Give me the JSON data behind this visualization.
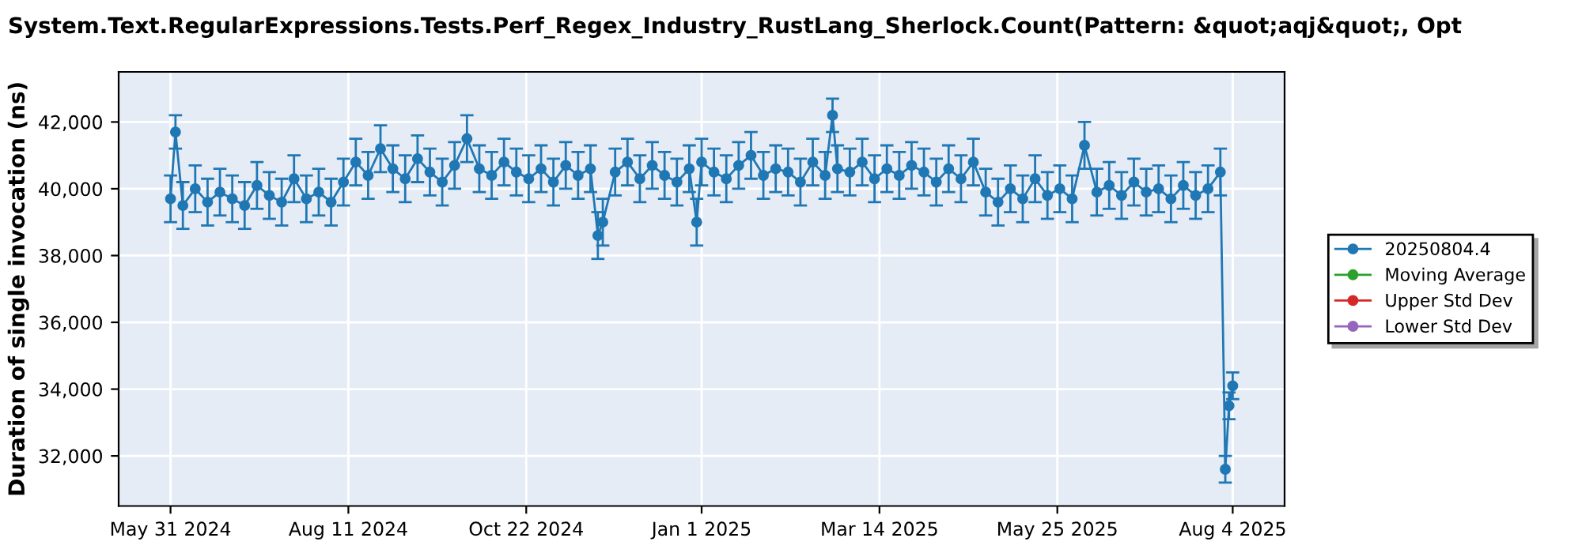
{
  "chart_data": {
    "type": "line",
    "title": "System.Text.RegularExpressions.Tests.Perf_Regex_Industry_RustLang_Sherlock.Count(Pattern: &quot;aqj&quot;, Opt",
    "ylabel": "Duration of single invocation (ns)",
    "x": [
      "2024-05-31",
      "2024-06-02",
      "2024-06-05",
      "2024-06-10",
      "2024-06-15",
      "2024-06-20",
      "2024-06-25",
      "2024-06-30",
      "2024-07-05",
      "2024-07-10",
      "2024-07-15",
      "2024-07-20",
      "2024-07-25",
      "2024-07-30",
      "2024-08-04",
      "2024-08-09",
      "2024-08-14",
      "2024-08-19",
      "2024-08-24",
      "2024-08-29",
      "2024-09-03",
      "2024-09-08",
      "2024-09-13",
      "2024-09-18",
      "2024-09-23",
      "2024-09-28",
      "2024-10-03",
      "2024-10-08",
      "2024-10-13",
      "2024-10-18",
      "2024-10-23",
      "2024-10-28",
      "2024-11-02",
      "2024-11-07",
      "2024-11-12",
      "2024-11-17",
      "2024-11-20",
      "2024-11-22",
      "2024-11-27",
      "2024-12-02",
      "2024-12-07",
      "2024-12-12",
      "2024-12-17",
      "2024-12-22",
      "2024-12-27",
      "2024-12-30",
      "2025-01-01",
      "2025-01-06",
      "2025-01-11",
      "2025-01-16",
      "2025-01-21",
      "2025-01-26",
      "2025-01-31",
      "2025-02-05",
      "2025-02-10",
      "2025-02-15",
      "2025-02-20",
      "2025-02-23",
      "2025-02-25",
      "2025-03-02",
      "2025-03-07",
      "2025-03-12",
      "2025-03-17",
      "2025-03-22",
      "2025-03-27",
      "2025-04-01",
      "2025-04-06",
      "2025-04-11",
      "2025-04-16",
      "2025-04-21",
      "2025-04-26",
      "2025-05-01",
      "2025-05-06",
      "2025-05-11",
      "2025-05-16",
      "2025-05-21",
      "2025-05-26",
      "2025-05-31",
      "2025-06-05",
      "2025-06-10",
      "2025-06-15",
      "2025-06-20",
      "2025-06-25",
      "2025-06-30",
      "2025-07-05",
      "2025-07-10",
      "2025-07-15",
      "2025-07-20",
      "2025-07-25",
      "2025-07-30",
      "2025-08-01",
      "2025-08-02T12:00",
      "2025-08-04"
    ],
    "series": [
      {
        "name": "20250804.4",
        "color": "#1f77b4",
        "marker": "circle",
        "values": [
          39700,
          41700,
          39500,
          40000,
          39600,
          39900,
          39700,
          39500,
          40100,
          39800,
          39600,
          40300,
          39700,
          39900,
          39600,
          40200,
          40800,
          40400,
          41200,
          40600,
          40300,
          40900,
          40500,
          40200,
          40700,
          41500,
          40600,
          40400,
          40800,
          40500,
          40300,
          40600,
          40200,
          40700,
          40400,
          40600,
          38600,
          39000,
          40500,
          40800,
          40300,
          40700,
          40400,
          40200,
          40600,
          39000,
          40800,
          40500,
          40300,
          40700,
          41000,
          40400,
          40600,
          40500,
          40200,
          40800,
          40400,
          42200,
          40600,
          40500,
          40800,
          40300,
          40600,
          40400,
          40700,
          40500,
          40200,
          40600,
          40300,
          40800,
          39900,
          39600,
          40000,
          39700,
          40300,
          39800,
          40000,
          39700,
          41300,
          39900,
          40100,
          39800,
          40200,
          39900,
          40000,
          39700,
          40100,
          39800,
          40000,
          40500,
          31600,
          33500,
          34100
        ],
        "errors": [
          700,
          500,
          700,
          700,
          700,
          700,
          700,
          700,
          700,
          700,
          700,
          700,
          700,
          700,
          700,
          700,
          700,
          700,
          700,
          700,
          700,
          700,
          700,
          700,
          700,
          700,
          700,
          700,
          700,
          700,
          700,
          700,
          700,
          700,
          700,
          700,
          700,
          700,
          700,
          700,
          700,
          700,
          700,
          700,
          700,
          700,
          700,
          700,
          700,
          700,
          700,
          700,
          700,
          700,
          700,
          700,
          700,
          500,
          700,
          700,
          700,
          700,
          700,
          700,
          700,
          700,
          700,
          700,
          700,
          700,
          700,
          700,
          700,
          700,
          700,
          700,
          700,
          700,
          700,
          700,
          700,
          700,
          700,
          700,
          700,
          700,
          700,
          700,
          700,
          700,
          400,
          400,
          400
        ]
      },
      {
        "name": "Moving Average",
        "color": "#2ca02c",
        "marker": "circle",
        "values": [
          null,
          null,
          null,
          null,
          null,
          null,
          null,
          null,
          null,
          null,
          null,
          null,
          null,
          null,
          null,
          null,
          null,
          null,
          null,
          null,
          null,
          null,
          null,
          null,
          null,
          null,
          null,
          null,
          null,
          null,
          null,
          null,
          null,
          null,
          null,
          null,
          null,
          null,
          null,
          null,
          null,
          null,
          null,
          null,
          null,
          null,
          null,
          null,
          null,
          null,
          null,
          null,
          null,
          null,
          null,
          null,
          null,
          null,
          null,
          null,
          null,
          null,
          null,
          null,
          null,
          null,
          null,
          null,
          null,
          null,
          null,
          null,
          null,
          null,
          null,
          null,
          null,
          null,
          null,
          null,
          null,
          null,
          null,
          null,
          null,
          null,
          null,
          null,
          null,
          null,
          null,
          null,
          null
        ]
      },
      {
        "name": "Upper Std Dev",
        "color": "#d62728",
        "marker": "circle",
        "values": [
          null,
          null,
          null,
          null,
          null,
          null,
          null,
          null,
          null,
          null,
          null,
          null,
          null,
          null,
          null,
          null,
          null,
          null,
          null,
          null,
          null,
          null,
          null,
          null,
          null,
          null,
          null,
          null,
          null,
          null,
          null,
          null,
          null,
          null,
          null,
          null,
          null,
          null,
          null,
          null,
          null,
          null,
          null,
          null,
          null,
          null,
          null,
          null,
          null,
          null,
          null,
          null,
          null,
          null,
          null,
          null,
          null,
          null,
          null,
          null,
          null,
          null,
          null,
          null,
          null,
          null,
          null,
          null,
          null,
          null,
          null,
          null,
          null,
          null,
          null,
          null,
          null,
          null,
          null,
          null,
          null,
          null,
          null,
          null,
          null,
          null,
          null,
          null,
          null,
          null,
          null,
          null,
          null
        ]
      },
      {
        "name": "Lower Std Dev",
        "color": "#9467bd",
        "marker": "circle",
        "values": [
          null,
          null,
          null,
          null,
          null,
          null,
          null,
          null,
          null,
          null,
          null,
          null,
          null,
          null,
          null,
          null,
          null,
          null,
          null,
          null,
          null,
          null,
          null,
          null,
          null,
          null,
          null,
          null,
          null,
          null,
          null,
          null,
          null,
          null,
          null,
          null,
          null,
          null,
          null,
          null,
          null,
          null,
          null,
          null,
          null,
          null,
          null,
          null,
          null,
          null,
          null,
          null,
          null,
          null,
          null,
          null,
          null,
          null,
          null,
          null,
          null,
          null,
          null,
          null,
          null,
          null,
          null,
          null,
          null,
          null,
          null,
          null,
          null,
          null,
          null,
          null,
          null,
          null,
          null,
          null,
          null,
          null,
          null,
          null,
          null,
          null,
          null,
          null,
          null,
          null,
          null,
          null,
          null
        ]
      }
    ],
    "xlim": [
      "2024-05-10",
      "2025-08-25"
    ],
    "xticks": [
      {
        "value": "2024-05-31",
        "label": "May 31 2024"
      },
      {
        "value": "2024-08-11",
        "label": "Aug 11 2024"
      },
      {
        "value": "2024-10-22",
        "label": "Oct 22 2024"
      },
      {
        "value": "2025-01-01",
        "label": "Jan 1 2025"
      },
      {
        "value": "2025-03-14",
        "label": "Mar 14 2025"
      },
      {
        "value": "2025-05-25",
        "label": "May 25 2025"
      },
      {
        "value": "2025-08-04",
        "label": "Aug 4 2025"
      }
    ],
    "ylim": [
      30500,
      43500
    ],
    "yticks": [
      {
        "value": 32000,
        "label": "32,000"
      },
      {
        "value": 34000,
        "label": "34,000"
      },
      {
        "value": 36000,
        "label": "36,000"
      },
      {
        "value": 38000,
        "label": "38,000"
      },
      {
        "value": 40000,
        "label": "40,000"
      },
      {
        "value": 42000,
        "label": "42,000"
      }
    ],
    "grid": true,
    "legend": "right"
  }
}
